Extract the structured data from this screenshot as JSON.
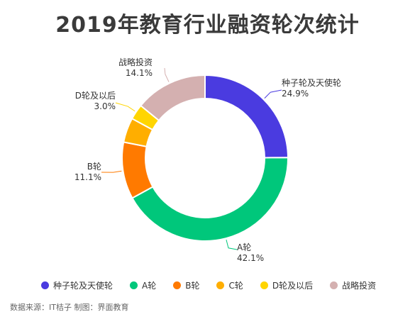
{
  "chart_data": {
    "type": "pie",
    "title": "2019年教育行业融资轮次统计",
    "categories": [
      "种子轮及天使轮",
      "A轮",
      "B轮",
      "C轮",
      "D轮及以后",
      "战略投资"
    ],
    "values": [
      24.9,
      42.1,
      11.1,
      4.8,
      3.0,
      14.1
    ],
    "value_labels": [
      "24.9%",
      "42.1%",
      "11.1%",
      "",
      "3.0%",
      "14.1%"
    ],
    "colors": [
      "#4a3be0",
      "#00c77b",
      "#ff7a00",
      "#ffae00",
      "#ffd500",
      "#d4b0b0"
    ],
    "donut": true,
    "legend": "bottom"
  },
  "source": "数据来源：IT桔子 制图：界面教育"
}
